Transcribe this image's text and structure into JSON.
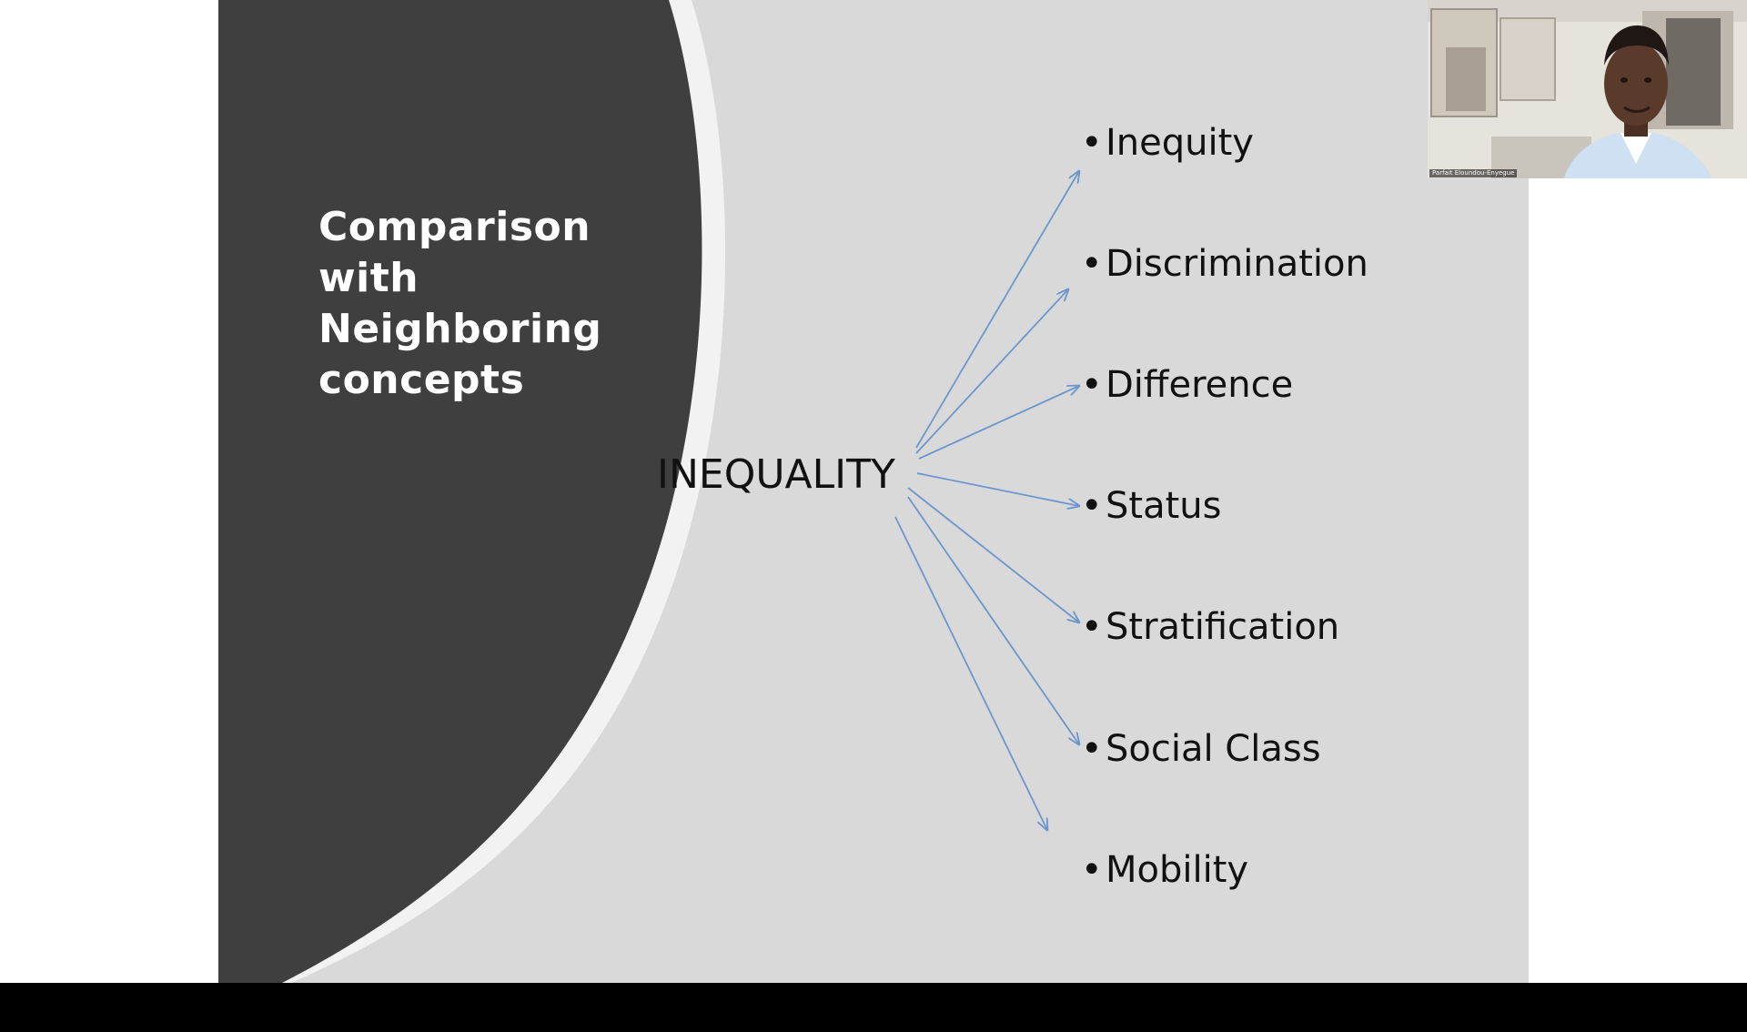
{
  "slide": {
    "title": "Comparison\nwith\nNeighboring\nconcepts",
    "central_concept": "INEQUALITY",
    "related_concepts": [
      "Inequity",
      "Discrimination",
      "Difference",
      "Status",
      "Stratification",
      "Social Class",
      "Mobility"
    ],
    "bullet": "•",
    "colors": {
      "panel": "#3f3f3f",
      "background": "#d9d9d9",
      "arc": "#f2f2f2",
      "arrow": "#6c97cc",
      "title_text": "#ffffff",
      "body_text": "#111111"
    }
  },
  "webcam": {
    "participant_name": "Parfait Eloundou-Enyegue"
  }
}
